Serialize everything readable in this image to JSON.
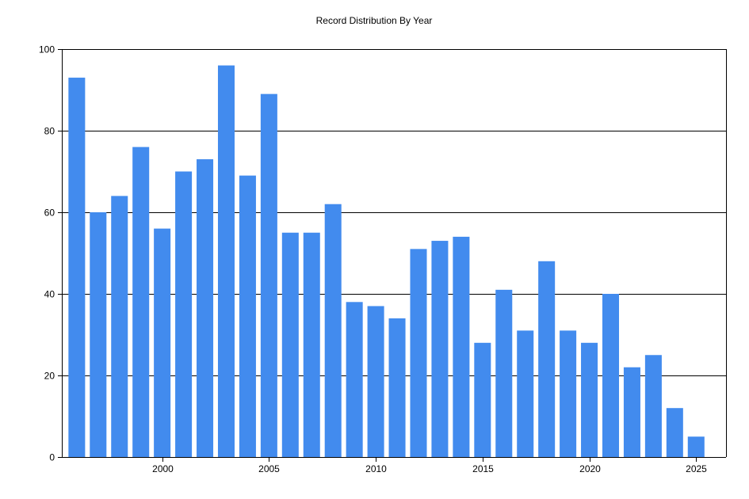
{
  "chart_data": {
    "type": "bar",
    "title": "Record Distribution By Year",
    "xlabel": "",
    "ylabel": "",
    "x": [
      1996,
      1997,
      1998,
      1999,
      2000,
      2001,
      2002,
      2003,
      2004,
      2005,
      2006,
      2007,
      2008,
      2009,
      2010,
      2011,
      2012,
      2013,
      2014,
      2015,
      2016,
      2017,
      2018,
      2019,
      2020,
      2021,
      2022,
      2023,
      2024,
      2025
    ],
    "values": [
      93,
      60,
      64,
      76,
      56,
      70,
      73,
      96,
      69,
      89,
      55,
      55,
      62,
      38,
      37,
      34,
      51,
      53,
      54,
      28,
      41,
      31,
      48,
      31,
      28,
      40,
      22,
      25,
      12,
      5
    ],
    "xlim": [
      1995.3,
      2026.4
    ],
    "ylim": [
      0,
      100
    ],
    "x_ticks": [
      2000,
      2005,
      2010,
      2015,
      2020,
      2025
    ],
    "y_ticks": [
      0,
      20,
      40,
      60,
      80,
      100
    ],
    "grid": "horizontal",
    "legend": "none",
    "bar_color": "#428bee"
  }
}
